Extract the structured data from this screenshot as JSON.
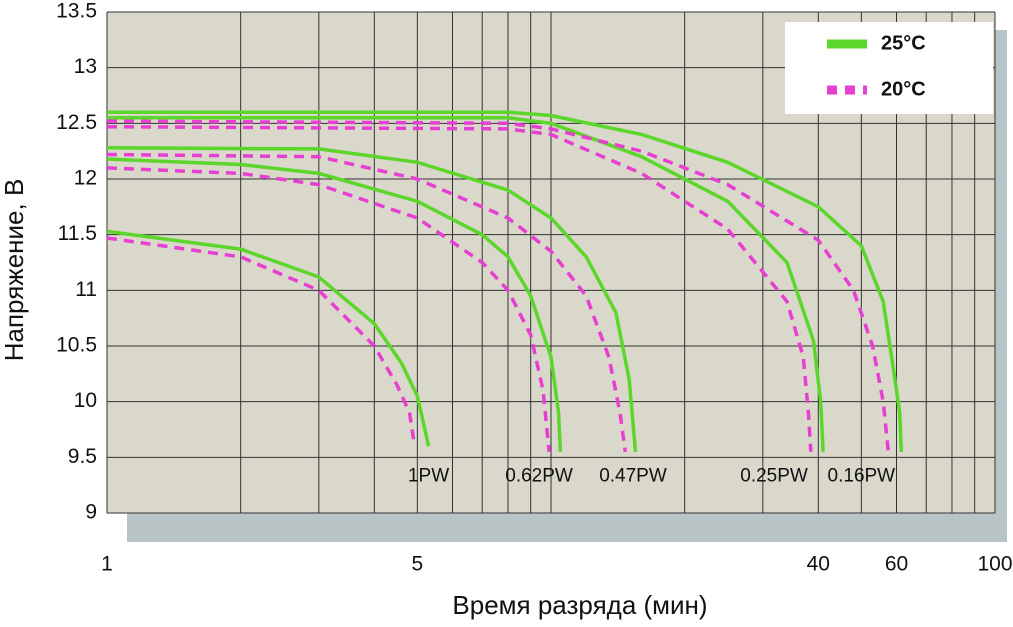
{
  "chart_data": {
    "type": "line",
    "xlabel": "Время разряда (мин)",
    "ylabel": "Напряжение, В",
    "xscale": "log",
    "xlim": [
      1,
      100
    ],
    "ylim": [
      9,
      13.5
    ],
    "xticks": [
      1,
      5,
      40,
      60,
      100
    ],
    "xgrid": [
      1,
      2,
      3,
      4,
      5,
      6,
      7,
      8,
      9,
      10,
      20,
      30,
      40,
      50,
      60,
      70,
      80,
      90,
      100
    ],
    "yticks": [
      9,
      9.5,
      10,
      10.5,
      11,
      11.5,
      12,
      12.5,
      13,
      13.5
    ],
    "grid": true,
    "legend": "top-right",
    "series": [
      {
        "name": "25°C",
        "color": "#5cd62b",
        "dashed": false,
        "curves": [
          {
            "x": [
              1,
              2,
              3,
              4,
              4.6,
              5,
              5.2,
              5.3
            ],
            "values": [
              11.53,
              11.37,
              11.12,
              10.7,
              10.35,
              10.05,
              9.75,
              9.6
            ]
          },
          {
            "x": [
              1,
              2,
              3,
              5,
              7,
              8,
              9,
              10,
              10.4,
              10.5
            ],
            "values": [
              12.18,
              12.13,
              12.05,
              11.8,
              11.5,
              11.3,
              10.95,
              10.4,
              9.9,
              9.55
            ]
          },
          {
            "x": [
              1,
              3,
              5,
              8,
              10,
              12,
              14,
              15,
              15.5
            ],
            "values": [
              12.28,
              12.27,
              12.15,
              11.9,
              11.65,
              11.3,
              10.8,
              10.2,
              9.55
            ]
          },
          {
            "x": [
              1,
              8,
              10,
              16,
              25,
              34,
              39,
              40.5,
              41
            ],
            "values": [
              12.55,
              12.55,
              12.5,
              12.2,
              11.8,
              11.25,
              10.55,
              10.0,
              9.55
            ]
          },
          {
            "x": [
              1,
              8,
              10,
              16,
              25,
              40,
              50,
              56,
              59,
              61,
              61.5
            ],
            "values": [
              12.6,
              12.6,
              12.57,
              12.4,
              12.15,
              11.75,
              11.4,
              10.9,
              10.3,
              9.9,
              9.55
            ]
          }
        ]
      },
      {
        "name": "20°C",
        "color": "#e63fd2",
        "dashed": true,
        "curves": [
          {
            "x": [
              1,
              2,
              3,
              4,
              4.5,
              4.8,
              4.93
            ],
            "values": [
              11.47,
              11.3,
              11.0,
              10.5,
              10.15,
              9.9,
              9.6
            ]
          },
          {
            "x": [
              1,
              2,
              3,
              5,
              7,
              8,
              9,
              9.6,
              9.9
            ],
            "values": [
              12.1,
              12.05,
              11.95,
              11.65,
              11.25,
              11.0,
              10.6,
              10.1,
              9.55
            ]
          },
          {
            "x": [
              1,
              3,
              5,
              8,
              10,
              12,
              13.5,
              14.3,
              14.7
            ],
            "values": [
              12.22,
              12.2,
              12.0,
              11.65,
              11.35,
              10.95,
              10.4,
              9.9,
              9.55
            ]
          },
          {
            "x": [
              1,
              8,
              10,
              16,
              25,
              34,
              37,
              38,
              38.5
            ],
            "values": [
              12.47,
              12.45,
              12.4,
              12.05,
              11.55,
              10.9,
              10.4,
              9.9,
              9.55
            ]
          },
          {
            "x": [
              1,
              8,
              10,
              16,
              25,
              40,
              48,
              53,
              56,
              57.5
            ],
            "values": [
              12.52,
              12.5,
              12.45,
              12.25,
              11.95,
              11.45,
              11.0,
              10.5,
              10.0,
              9.55
            ]
          }
        ]
      }
    ],
    "annotations": [
      {
        "text": "1PW",
        "x": 5.3,
        "y": 9.33
      },
      {
        "text": "0.62PW",
        "x": 9.4,
        "y": 9.33
      },
      {
        "text": "0.47PW",
        "x": 15.3,
        "y": 9.33
      },
      {
        "text": "0.25PW",
        "x": 31.8,
        "y": 9.33
      },
      {
        "text": "0.16PW",
        "x": 50,
        "y": 9.33
      }
    ]
  }
}
